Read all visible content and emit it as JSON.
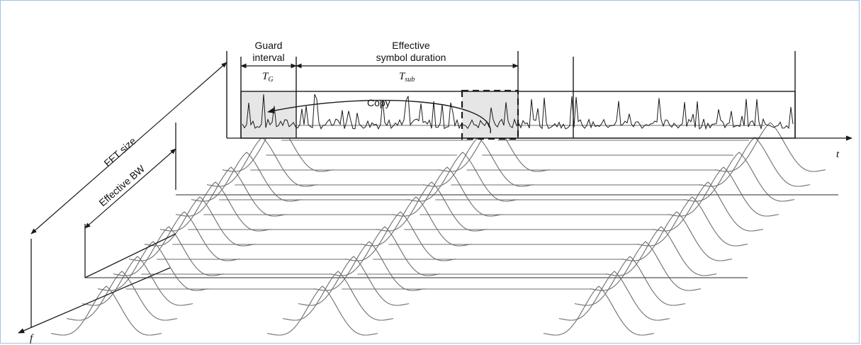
{
  "labels": {
    "guard_line1": "Guard",
    "guard_line2": "interval",
    "tg_main": "T",
    "tg_sub": "G",
    "effective_line1": "Effective",
    "effective_line2": "symbol duration",
    "tsub_main": "T",
    "tsub_sub": "sub",
    "copy": "Copy",
    "fft_size": "FFT size",
    "effective_bw": "Effective BW",
    "t_axis": "t",
    "f_axis": "f"
  },
  "colors": {
    "frame_border": "#9dc3e6",
    "guard_fill": "#e6e6e6",
    "line": "#1a1a1a",
    "subcarrier": "#6e6e6e"
  }
}
